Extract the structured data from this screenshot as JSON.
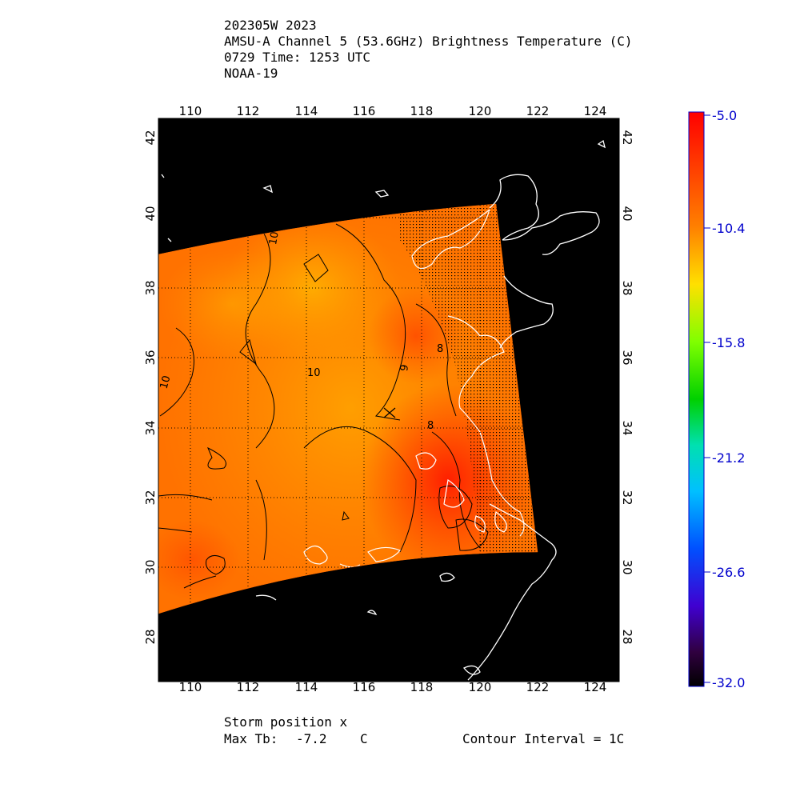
{
  "header": {
    "storm_id": "202305W 2023",
    "product": "AMSU-A Channel 5 (53.6GHz) Brightness Temperature (C)",
    "time": "0729 Time: 1253 UTC",
    "satellite": "NOAA-19"
  },
  "map": {
    "lon_ticks": [
      "110",
      "112",
      "114",
      "116",
      "118",
      "120",
      "122",
      "124"
    ],
    "lat_ticks": [
      "42",
      "40",
      "38",
      "36",
      "34",
      "32",
      "30",
      "28"
    ],
    "contour_labels": [
      "10",
      "10",
      "10",
      "9",
      "8",
      "8"
    ],
    "lon_range": [
      108.8,
      124.8
    ],
    "lat_range": [
      26.6,
      42.6
    ],
    "background_color": "#000000",
    "coastline_color": "#ffffff"
  },
  "colorbar": {
    "labels": [
      "-5.0",
      "-10.4",
      "-15.8",
      "-21.2",
      "-26.6",
      "-32.0"
    ],
    "range": [
      -32.0,
      -5.0
    ],
    "label_color": "#0000cc"
  },
  "footer": {
    "storm_position": "Storm position x",
    "max_tb_label": "Max Tb:",
    "max_tb_value": "-7.2",
    "max_tb_unit": "C",
    "contour_interval": "Contour Interval = 1C"
  }
}
